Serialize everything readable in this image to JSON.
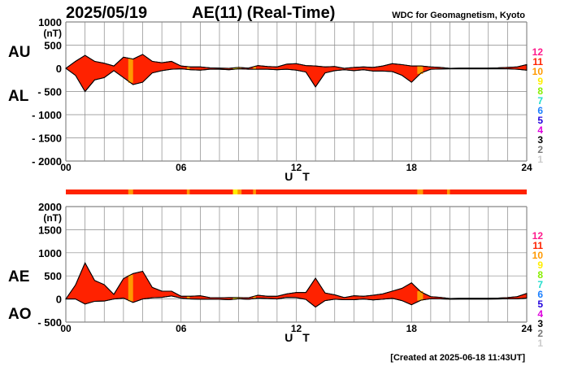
{
  "header": {
    "date": "2025/05/19",
    "title": "AE(11) (Real-Time)",
    "source": "WDC for Geomagnetism, Kyoto",
    "footer": "[Created at 2025-06-18 11:43UT]"
  },
  "legend": {
    "levels": [
      {
        "label": "12",
        "color": "#ff1a8c"
      },
      {
        "label": "11",
        "color": "#ff2200"
      },
      {
        "label": "10",
        "color": "#ff9900"
      },
      {
        "label": "9",
        "color": "#ffee00"
      },
      {
        "label": "8",
        "color": "#88ee00"
      },
      {
        "label": "7",
        "color": "#22ddcc"
      },
      {
        "label": "6",
        "color": "#1a7fff"
      },
      {
        "label": "5",
        "color": "#2200dd"
      },
      {
        "label": "4",
        "color": "#dd00dd"
      },
      {
        "label": "3",
        "color": "#000000"
      },
      {
        "label": "2",
        "color": "#777777"
      },
      {
        "label": "1",
        "color": "#cccccc"
      }
    ]
  },
  "chart_data": [
    {
      "type": "area",
      "name": "AU/AL",
      "series_labels": [
        "AU",
        "AL"
      ],
      "ylabel_unit": "(nT)",
      "xlabel": "U T",
      "xlim": [
        0,
        24
      ],
      "ylim": [
        -2000,
        1000
      ],
      "yticks": [
        "1000",
        "500",
        "0",
        "- 500",
        "- 1000",
        "- 1500",
        "- 2000"
      ],
      "ytick_values": [
        1000,
        500,
        0,
        -500,
        -1000,
        -1500,
        -2000
      ],
      "xticks": [
        "00",
        "06",
        "12",
        "18",
        "24"
      ],
      "xtick_values": [
        0,
        6,
        12,
        18,
        24
      ],
      "grid": true,
      "x": [
        0,
        0.5,
        1,
        1.5,
        2,
        2.5,
        3,
        3.5,
        4,
        4.5,
        5,
        5.5,
        6,
        6.5,
        7,
        7.5,
        8,
        8.5,
        9,
        9.5,
        10,
        10.5,
        11,
        11.5,
        12,
        12.5,
        13,
        13.5,
        14,
        14.5,
        15,
        15.5,
        16,
        16.5,
        17,
        17.5,
        18,
        18.5,
        19,
        19.5,
        20,
        20.5,
        21,
        21.5,
        22,
        22.5,
        23,
        23.5,
        24
      ],
      "AU": [
        0,
        150,
        280,
        150,
        110,
        50,
        240,
        200,
        300,
        150,
        120,
        150,
        50,
        30,
        30,
        10,
        5,
        0,
        20,
        5,
        60,
        40,
        30,
        90,
        100,
        60,
        50,
        30,
        40,
        0,
        20,
        30,
        20,
        50,
        100,
        80,
        50,
        50,
        30,
        20,
        0,
        5,
        5,
        5,
        5,
        10,
        20,
        30,
        80
      ],
      "AL": [
        0,
        -150,
        -500,
        -250,
        -200,
        -50,
        -200,
        -350,
        -300,
        -100,
        -50,
        -20,
        -10,
        -30,
        -40,
        -20,
        -20,
        -30,
        -10,
        -20,
        -20,
        -20,
        -30,
        -20,
        -40,
        -80,
        -400,
        -100,
        -50,
        -30,
        -50,
        -30,
        -60,
        -60,
        -70,
        -150,
        -300,
        -100,
        -20,
        -15,
        -10,
        -10,
        -10,
        -10,
        -10,
        -10,
        -10,
        -20,
        -40
      ]
    },
    {
      "type": "area",
      "name": "AE/AO",
      "series_labels": [
        "AE",
        "AO"
      ],
      "ylabel_unit": "(nT)",
      "xlabel": "U T",
      "xlim": [
        0,
        24
      ],
      "ylim": [
        -500,
        2000
      ],
      "yticks": [
        "2000",
        "1500",
        "1000",
        "500",
        "0",
        "- 500"
      ],
      "ytick_values": [
        2000,
        1500,
        1000,
        500,
        0,
        -500
      ],
      "xticks": [
        "00",
        "06",
        "12",
        "18",
        "24"
      ],
      "xtick_values": [
        0,
        6,
        12,
        18,
        24
      ],
      "grid": true,
      "derived": "AE = AU - AL, AO = (AU + AL) / 2"
    },
    {
      "type": "bar",
      "name": "station-count",
      "default_level": 11,
      "segments": [
        {
          "start": 3.25,
          "end": 3.5,
          "level": 10
        },
        {
          "start": 6.3,
          "end": 6.45,
          "level": 10
        },
        {
          "start": 8.7,
          "end": 8.95,
          "level": 9
        },
        {
          "start": 8.95,
          "end": 9.15,
          "level": 10
        },
        {
          "start": 9.75,
          "end": 9.9,
          "level": 10
        },
        {
          "start": 18.3,
          "end": 18.6,
          "level": 10
        },
        {
          "start": 19.85,
          "end": 20.0,
          "level": 10
        }
      ]
    }
  ]
}
